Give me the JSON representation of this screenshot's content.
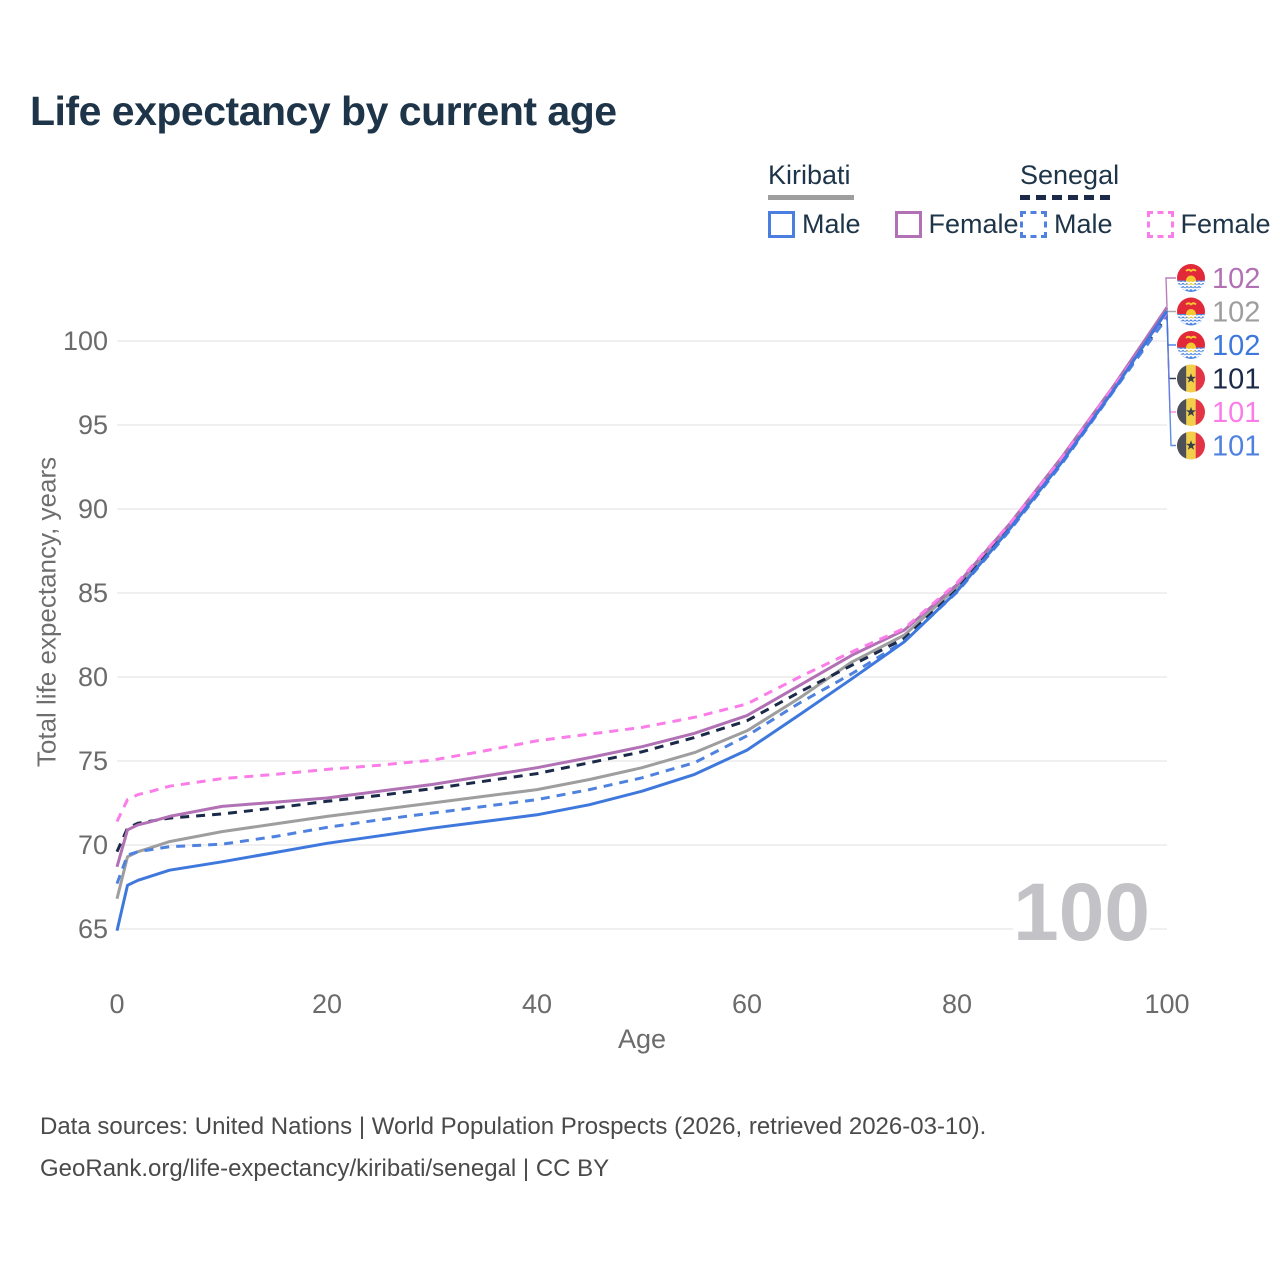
{
  "title": "Life expectancy by current age",
  "watermark": "100",
  "legend": {
    "kiribati": {
      "label": "Kiribati",
      "male": "Male",
      "female": "Female"
    },
    "senegal": {
      "label": "Senegal",
      "male": "Male",
      "female": "Female"
    }
  },
  "footer": {
    "line1": "Data sources: United Nations | World Population Prospects (2026, retrieved 2026-03-10).",
    "line2": "GeoRank.org/life-expectancy/kiribati/senegal | CC BY"
  },
  "colors": {
    "title": "#1e3449",
    "kiribati_male": "#3f78dd",
    "kiribati_female": "#b171b4",
    "kiribati_both": "#9e9e9e",
    "senegal_male": "#4f82df",
    "senegal_female": "#fb7de9",
    "senegal_both": "#1b2a49",
    "grid": "#ebebeb",
    "axis_text": "#6b6b6b",
    "watermark": "#c3c3c7"
  },
  "chart_data": {
    "type": "line",
    "title": "Life expectancy by current age",
    "xlabel": "Age",
    "ylabel": "Total life expectancy, years",
    "x_ticks": [
      0,
      20,
      40,
      60,
      80,
      100
    ],
    "y_ticks": [
      65,
      70,
      75,
      80,
      85,
      90,
      95,
      100
    ],
    "xlim": [
      0,
      100
    ],
    "ylim": [
      63.5,
      105
    ],
    "grid": "horizontal",
    "legend_position": "top-right",
    "ages": [
      0,
      1,
      2,
      3,
      5,
      10,
      15,
      20,
      25,
      30,
      35,
      40,
      45,
      50,
      55,
      60,
      65,
      70,
      75,
      80,
      85,
      90,
      95,
      100
    ],
    "series": [
      {
        "name": "Kiribati Both sexes",
        "country": "Kiribati",
        "sex": "Both sexes",
        "color": "#9e9e9e",
        "dash": "solid",
        "flag": "kiribati",
        "row": 1,
        "end_label": "102",
        "values": [
          66.8,
          69.3,
          69.6,
          69.8,
          70.2,
          70.8,
          71.25,
          71.7,
          72.1,
          72.5,
          72.9,
          73.3,
          73.9,
          74.6,
          75.5,
          76.8,
          78.75,
          80.9,
          82.5,
          85.35,
          88.95,
          92.95,
          97.25,
          101.9
        ]
      },
      {
        "name": "Senegal Both sexes",
        "country": "Senegal",
        "sex": "Both sexes",
        "color": "#1b2a49",
        "dash": "dashed",
        "flag": "senegal",
        "row": 3,
        "end_label": "101",
        "values": [
          69.6,
          71.0,
          71.3,
          71.4,
          71.6,
          71.85,
          72.2,
          72.6,
          72.95,
          73.35,
          73.8,
          74.25,
          74.9,
          75.55,
          76.4,
          77.4,
          79.1,
          80.7,
          82.3,
          85.2,
          88.85,
          92.85,
          97.2,
          101.5
        ]
      },
      {
        "name": "Kiribati Female",
        "country": "Kiribati",
        "sex": "Female",
        "color": "#b171b4",
        "dash": "solid",
        "flag": "kiribati",
        "row": 0,
        "end_label": "102",
        "values": [
          68.7,
          70.9,
          71.2,
          71.35,
          71.7,
          72.3,
          72.55,
          72.8,
          73.2,
          73.6,
          74.1,
          74.6,
          75.2,
          75.85,
          76.65,
          77.7,
          79.5,
          81.3,
          82.8,
          85.5,
          89.1,
          93.1,
          97.4,
          102.0
        ]
      },
      {
        "name": "Senegal Female",
        "country": "Senegal",
        "sex": "Female",
        "color": "#fb7de9",
        "dash": "dashed",
        "flag": "senegal",
        "row": 4,
        "end_label": "101",
        "values": [
          71.4,
          72.7,
          73.0,
          73.15,
          73.5,
          73.95,
          74.2,
          74.5,
          74.75,
          75.05,
          75.6,
          76.2,
          76.6,
          77.0,
          77.6,
          78.4,
          80.0,
          81.5,
          82.9,
          85.6,
          89.1,
          93.05,
          97.35,
          101.6
        ]
      },
      {
        "name": "Senegal Male",
        "country": "Senegal",
        "sex": "Male",
        "color": "#4f82df",
        "dash": "dashed",
        "flag": "senegal",
        "row": 5,
        "end_label": "101",
        "values": [
          67.7,
          69.4,
          69.6,
          69.7,
          69.9,
          70.05,
          70.5,
          71.05,
          71.5,
          71.9,
          72.3,
          72.7,
          73.3,
          74.0,
          74.9,
          76.5,
          78.45,
          80.2,
          82.15,
          85.05,
          88.7,
          92.7,
          97.1,
          101.4
        ]
      },
      {
        "name": "Kiribati Male",
        "country": "Kiribati",
        "sex": "Male",
        "color": "#3f78dd",
        "dash": "solid",
        "flag": "kiribati",
        "row": 2,
        "end_label": "102",
        "values": [
          64.9,
          67.6,
          67.9,
          68.1,
          68.5,
          69.0,
          69.55,
          70.1,
          70.55,
          71.0,
          71.4,
          71.8,
          72.4,
          73.2,
          74.2,
          75.65,
          77.75,
          79.9,
          82.1,
          85.1,
          88.8,
          92.8,
          97.15,
          101.8
        ]
      }
    ]
  }
}
